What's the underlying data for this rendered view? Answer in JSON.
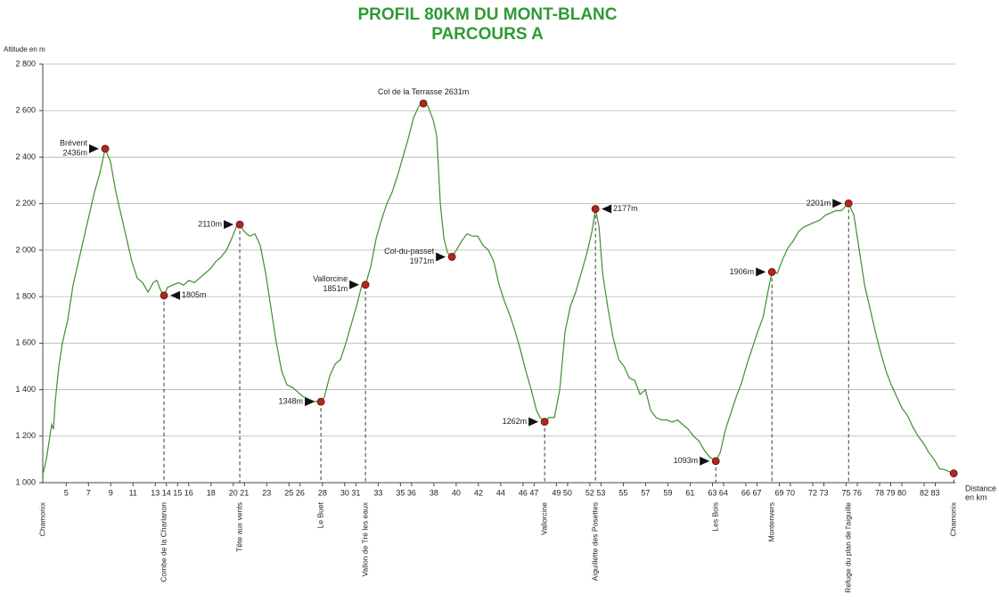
{
  "chart_data": {
    "type": "line",
    "title": [
      "PROFIL 80KM DU MONT-BLANC",
      "PARCOURS A"
    ],
    "y_label": "Altitude en m",
    "x_label": [
      "Distance",
      "en km"
    ],
    "xlim": [
      2.9,
      84.8
    ],
    "xticks": [
      5,
      7,
      9,
      11,
      13,
      14,
      15,
      16,
      18,
      20,
      21,
      23,
      25,
      26,
      28,
      30,
      31,
      33,
      35,
      36,
      38,
      40,
      42,
      44,
      46,
      47,
      49,
      50,
      52,
      53,
      55,
      57,
      59,
      61,
      63,
      64,
      66,
      67,
      69,
      70,
      72,
      73,
      75,
      76,
      78,
      79,
      80,
      82,
      83
    ],
    "ylim": [
      1000,
      2800
    ],
    "yticks": [
      {
        "value": 1000,
        "label": "1 000"
      },
      {
        "value": 1200,
        "label": "1 200"
      },
      {
        "value": 1400,
        "label": "1 400"
      },
      {
        "value": 1600,
        "label": "1 600"
      },
      {
        "value": 1800,
        "label": "1 800"
      },
      {
        "value": 2000,
        "label": "2 000"
      },
      {
        "value": 2200,
        "label": "2 200"
      },
      {
        "value": 2400,
        "label": "2 400"
      },
      {
        "value": 2600,
        "label": "2 600"
      },
      {
        "value": 2800,
        "label": "2 800"
      }
    ],
    "grid": true,
    "color": "#3e8e2e",
    "marker_color": "#b3261e",
    "x": [
      2.9,
      3.22,
      3.54,
      3.7,
      3.86,
      4.02,
      4.34,
      4.66,
      5.14,
      5.62,
      6.1,
      6.58,
      7.06,
      7.54,
      8.02,
      8.5,
      8.98,
      9.46,
      9.94,
      10.42,
      10.9,
      11.38,
      11.86,
      12.34,
      12.82,
      13.14,
      13.46,
      13.78,
      14.1,
      14.58,
      15.06,
      15.54,
      16.02,
      16.5,
      16.98,
      17.46,
      17.94,
      18.42,
      18.9,
      19.38,
      19.86,
      20.26,
      20.58,
      20.98,
      21.46,
      21.94,
      22.42,
      22.9,
      23.38,
      23.86,
      24.34,
      24.82,
      25.3,
      25.78,
      26.26,
      26.74,
      27.22,
      27.86,
      28.18,
      28.66,
      29.14,
      29.62,
      30.1,
      30.58,
      31.06,
      31.54,
      31.86,
      32.34,
      32.82,
      33.3,
      33.78,
      34.26,
      34.74,
      35.22,
      35.7,
      36.18,
      36.66,
      37.06,
      37.46,
      37.94,
      38.26,
      38.58,
      38.9,
      39.22,
      39.62,
      40.02,
      40.5,
      40.98,
      41.46,
      41.94,
      42.42,
      42.9,
      43.38,
      43.86,
      44.34,
      44.82,
      45.3,
      45.78,
      46.26,
      46.74,
      47.22,
      47.54,
      47.94,
      48.34,
      48.82,
      49.3,
      49.78,
      50.26,
      50.74,
      51.22,
      51.7,
      52.18,
      52.5,
      52.82,
      53.14,
      53.62,
      54.1,
      54.58,
      55.06,
      55.54,
      56.02,
      56.5,
      56.98,
      57.46,
      57.94,
      58.42,
      58.9,
      59.38,
      59.86,
      60.34,
      60.82,
      61.3,
      61.78,
      62.26,
      62.74,
      63.3,
      63.7,
      64.18,
      64.66,
      65.14,
      65.62,
      66.1,
      66.58,
      67.06,
      67.54,
      68.02,
      68.34,
      68.82,
      69.3,
      69.78,
      70.26,
      70.74,
      71.22,
      71.7,
      72.18,
      72.66,
      73.14,
      73.62,
      74.1,
      74.58,
      75.22,
      75.7,
      76.18,
      76.66,
      77.14,
      77.62,
      78.1,
      78.58,
      79.06,
      79.54,
      80.02,
      80.5,
      80.98,
      81.46,
      81.94,
      82.42,
      82.9,
      83.38,
      83.86,
      84.66
    ],
    "values": [
      1035,
      1100,
      1200,
      1250,
      1230,
      1350,
      1500,
      1600,
      1700,
      1850,
      1950,
      2050,
      2150,
      2250,
      2330,
      2436,
      2380,
      2250,
      2150,
      2050,
      1950,
      1880,
      1860,
      1820,
      1860,
      1870,
      1830,
      1805,
      1840,
      1850,
      1860,
      1850,
      1870,
      1860,
      1880,
      1900,
      1920,
      1950,
      1970,
      2000,
      2050,
      2100,
      2110,
      2080,
      2060,
      2070,
      2020,
      1900,
      1750,
      1600,
      1480,
      1420,
      1410,
      1390,
      1370,
      1360,
      1350,
      1348,
      1370,
      1460,
      1510,
      1530,
      1600,
      1680,
      1760,
      1850,
      1851,
      1930,
      2050,
      2130,
      2200,
      2250,
      2320,
      2400,
      2480,
      2570,
      2620,
      2631,
      2620,
      2560,
      2490,
      2200,
      2050,
      1990,
      1971,
      2000,
      2040,
      2070,
      2060,
      2060,
      2020,
      2000,
      1950,
      1850,
      1780,
      1720,
      1650,
      1570,
      1480,
      1400,
      1310,
      1280,
      1262,
      1280,
      1280,
      1400,
      1650,
      1760,
      1820,
      1900,
      1980,
      2080,
      2177,
      2100,
      1900,
      1750,
      1620,
      1530,
      1500,
      1450,
      1440,
      1380,
      1400,
      1310,
      1280,
      1270,
      1270,
      1260,
      1270,
      1250,
      1230,
      1200,
      1180,
      1140,
      1110,
      1093,
      1130,
      1230,
      1300,
      1370,
      1430,
      1510,
      1580,
      1650,
      1710,
      1830,
      1906,
      1900,
      1960,
      2010,
      2040,
      2080,
      2100,
      2110,
      2120,
      2130,
      2150,
      2160,
      2170,
      2170,
      2201,
      2150,
      2000,
      1850,
      1750,
      1650,
      1560,
      1480,
      1420,
      1370,
      1320,
      1290,
      1240,
      1200,
      1170,
      1130,
      1100,
      1060,
      1055,
      1040
    ],
    "points": {
      "x": [
        8.5,
        13.78,
        20.58,
        27.86,
        31.86,
        37.06,
        39.62,
        47.94,
        52.5,
        63.3,
        68.34,
        75.22,
        84.66
      ],
      "values": [
        2436,
        1805,
        2110,
        1348,
        1851,
        2631,
        1971,
        1262,
        2177,
        1093,
        1906,
        2201,
        1040
      ],
      "value_labels": [
        "2436m",
        "1805m",
        "2110m",
        "1348m",
        "1851m",
        "2631m",
        "1971m",
        "1262m",
        "2177m",
        "1093m",
        "1906m",
        "2201m",
        null
      ],
      "names": [
        "Brévent",
        null,
        null,
        null,
        "Vallorcine",
        "Col de la Terrasse",
        "Col-du-passet",
        null,
        null,
        null,
        null,
        null,
        null
      ]
    },
    "waypoints": {
      "x": [
        2.9,
        13.78,
        20.58,
        27.86,
        31.86,
        47.94,
        52.5,
        63.3,
        68.34,
        75.22,
        84.66
      ],
      "labels": [
        "Chamonix",
        "Combe de la Charlanon",
        "Tête aux vents",
        "Le Buet",
        "Vallon de Tré les eaux",
        "Vallorcine",
        "Aiguillette des Posettes",
        "Les Bois",
        "Montenvers",
        "Refuge du plan de l'aiguille",
        "Chamonix"
      ]
    }
  }
}
